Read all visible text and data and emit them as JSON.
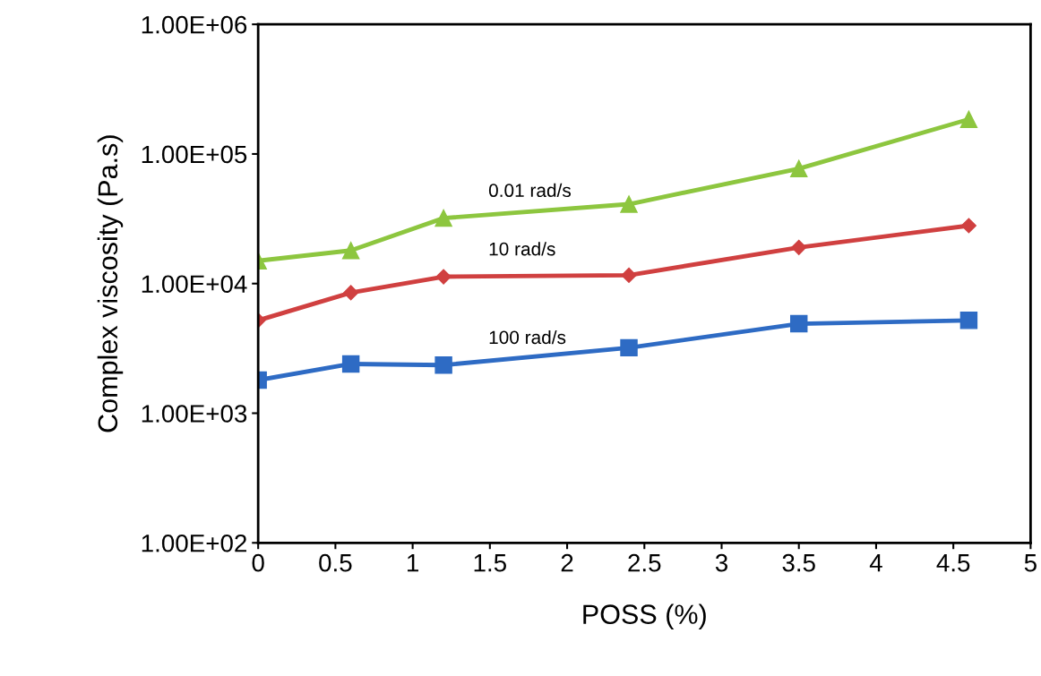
{
  "chart_data": {
    "type": "line",
    "xlabel": "POSS (%)",
    "ylabel": "Complex viscosity (Pa.s)",
    "log": "y",
    "x": [
      0,
      0.6,
      1.2,
      2.4,
      3.5,
      4.6
    ],
    "xlim": [
      0,
      5
    ],
    "xticks": [
      0,
      0.5,
      1,
      1.5,
      2,
      2.5,
      3,
      3.5,
      4,
      4.5,
      5
    ],
    "ylim": [
      100,
      1000000
    ],
    "yticks": [
      {
        "value": 100,
        "label": "1.00E+02"
      },
      {
        "value": 1000,
        "label": "1.00E+03"
      },
      {
        "value": 10000,
        "label": "1.00E+04"
      },
      {
        "value": 100000,
        "label": "1.00E+05"
      },
      {
        "value": 1000000,
        "label": "1.00E+06"
      }
    ],
    "grid": false,
    "legend": false,
    "series": [
      {
        "name": "0.01 rad/s",
        "color": "#8dc63f",
        "marker": "triangle",
        "values": [
          15000,
          18000,
          32000,
          41000,
          77000,
          185000
        ]
      },
      {
        "name": "10 rad/s",
        "color": "#d04040",
        "marker": "diamond",
        "values": [
          5200,
          8500,
          11300,
          11600,
          19000,
          28000
        ]
      },
      {
        "name": "100 rad/s",
        "color": "#2e6bc4",
        "marker": "square",
        "values": [
          1800,
          2400,
          2350,
          3200,
          4900,
          5200
        ]
      }
    ]
  }
}
